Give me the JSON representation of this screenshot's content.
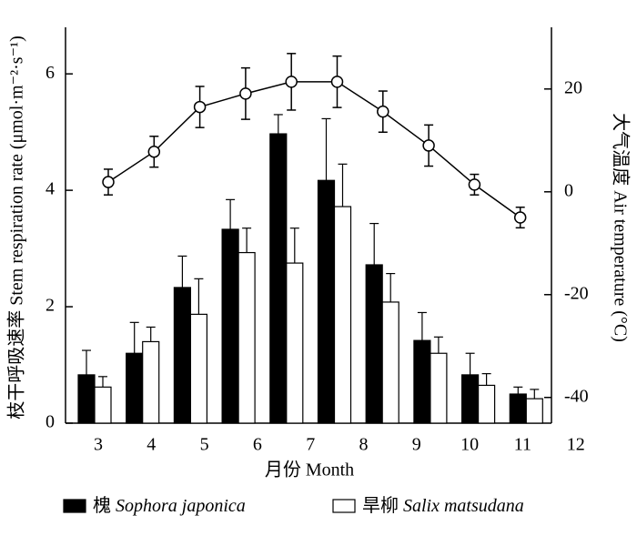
{
  "chart_data": {
    "type": "bar",
    "x_label": "月份 Month",
    "y_label": "枝干呼吸速率 Stem respiration rate (μmol·m⁻²·s⁻¹)",
    "y2_label": "大气温度 Air temperature (°C)",
    "categories": [
      3,
      4,
      5,
      6,
      7,
      8,
      9,
      10,
      11,
      12
    ],
    "series": [
      {
        "name": "槐 Sophora japonica",
        "color": "#000000",
        "values": [
          0.83,
          1.2,
          2.33,
          3.33,
          4.97,
          4.17,
          2.72,
          1.42,
          0.83,
          0.5
        ],
        "errors": [
          0.42,
          0.53,
          0.54,
          0.51,
          0.33,
          1.06,
          0.71,
          0.48,
          0.37,
          0.12
        ]
      },
      {
        "name": "旱柳 Salix matsudana",
        "color": "#ffffff",
        "values": [
          0.62,
          1.4,
          1.87,
          2.93,
          2.75,
          3.72,
          2.08,
          1.2,
          0.65,
          0.42
        ],
        "errors": [
          0.18,
          0.25,
          0.61,
          0.42,
          0.6,
          0.73,
          0.49,
          0.28,
          0.2,
          0.16
        ]
      },
      {
        "type": "line",
        "axis": "y2",
        "color": "#000000",
        "values": [
          1.9,
          7.8,
          16.5,
          19.1,
          21.4,
          21.4,
          15.6,
          9.0,
          1.4,
          -5.0
        ],
        "errors": [
          2.5,
          3,
          4,
          5,
          5.5,
          5,
          4,
          4,
          2,
          2
        ]
      }
    ],
    "ylim": [
      0,
      6.8
    ],
    "yticks": [
      0,
      2,
      4,
      6
    ],
    "y2lim": [
      -45,
      32
    ],
    "y2ticks": [
      -40,
      -20,
      0,
      20
    ]
  }
}
